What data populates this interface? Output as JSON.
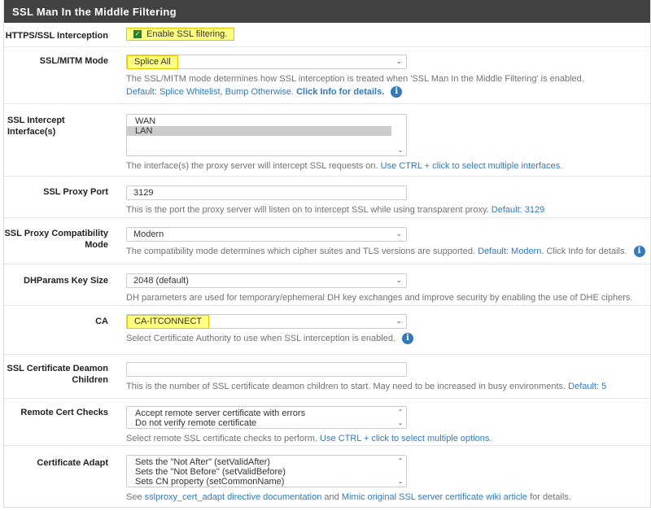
{
  "title": "SSL Man In the Middle Filtering",
  "rows": {
    "interception": {
      "label": "HTTPS/SSL Interception",
      "checkbox_label": "Enable SSL filtering.",
      "checked": true
    },
    "mode": {
      "label": "SSL/MITM Mode",
      "value": "Splice All",
      "help": "The SSL/MITM mode determines how SSL interception is treated when 'SSL Man In the Middle Filtering' is enabled.",
      "default": "Default: Splice Whitelist, Bump Otherwise.",
      "info": "Click Info for details."
    },
    "interfaces": {
      "label": "SSL Intercept Interface(s)",
      "options": [
        "WAN",
        "LAN"
      ],
      "selected": "LAN",
      "help": "The interface(s) the proxy server will intercept SSL requests on.",
      "hint": "Use CTRL + click to select multiple interfaces."
    },
    "port": {
      "label": "SSL Proxy Port",
      "value": "3129",
      "help": "This is the port the proxy server will listen on to intercept SSL while using transparent proxy.",
      "default": "Default: 3129"
    },
    "compat": {
      "label": "SSL Proxy Compatibility Mode",
      "value": "Modern",
      "help": "The compatibility mode determines which cipher suites and TLS versions are supported.",
      "default": "Default: Modern.",
      "info": "Click Info for details."
    },
    "dhparams": {
      "label": "DHParams Key Size",
      "value": "2048 (default)",
      "help": "DH parameters are used for temporary/ephemeral DH key exchanges and improve security by enabling the use of DHE ciphers."
    },
    "ca": {
      "label": "CA",
      "value": "CA-ITCONNECT",
      "help": "Select Certificate Authority to use when SSL interception is enabled."
    },
    "children": {
      "label": "SSL Certificate Deamon Children",
      "value": "",
      "help": "This is the number of SSL certificate deamon children to start. May need to be increased in busy environments.",
      "default": "Default: 5"
    },
    "remote": {
      "label": "Remote Cert Checks",
      "options": [
        "Accept remote server certificate with errors",
        "Do not verify remote certificate"
      ],
      "help": "Select remote SSL certificate checks to perform.",
      "hint": "Use CTRL + click to select multiple options."
    },
    "adapt": {
      "label": "Certificate Adapt",
      "options": [
        "Sets the \"Not After\" (setValidAfter)",
        "Sets the \"Not Before\" (setValidBefore)",
        "Sets CN property (setCommonName)"
      ],
      "help_pre": "See",
      "link1": "sslproxy_cert_adapt directive documentation",
      "help_mid": "and",
      "link2": "Mimic original SSL server certificate wiki article",
      "help_post": "for details."
    }
  }
}
